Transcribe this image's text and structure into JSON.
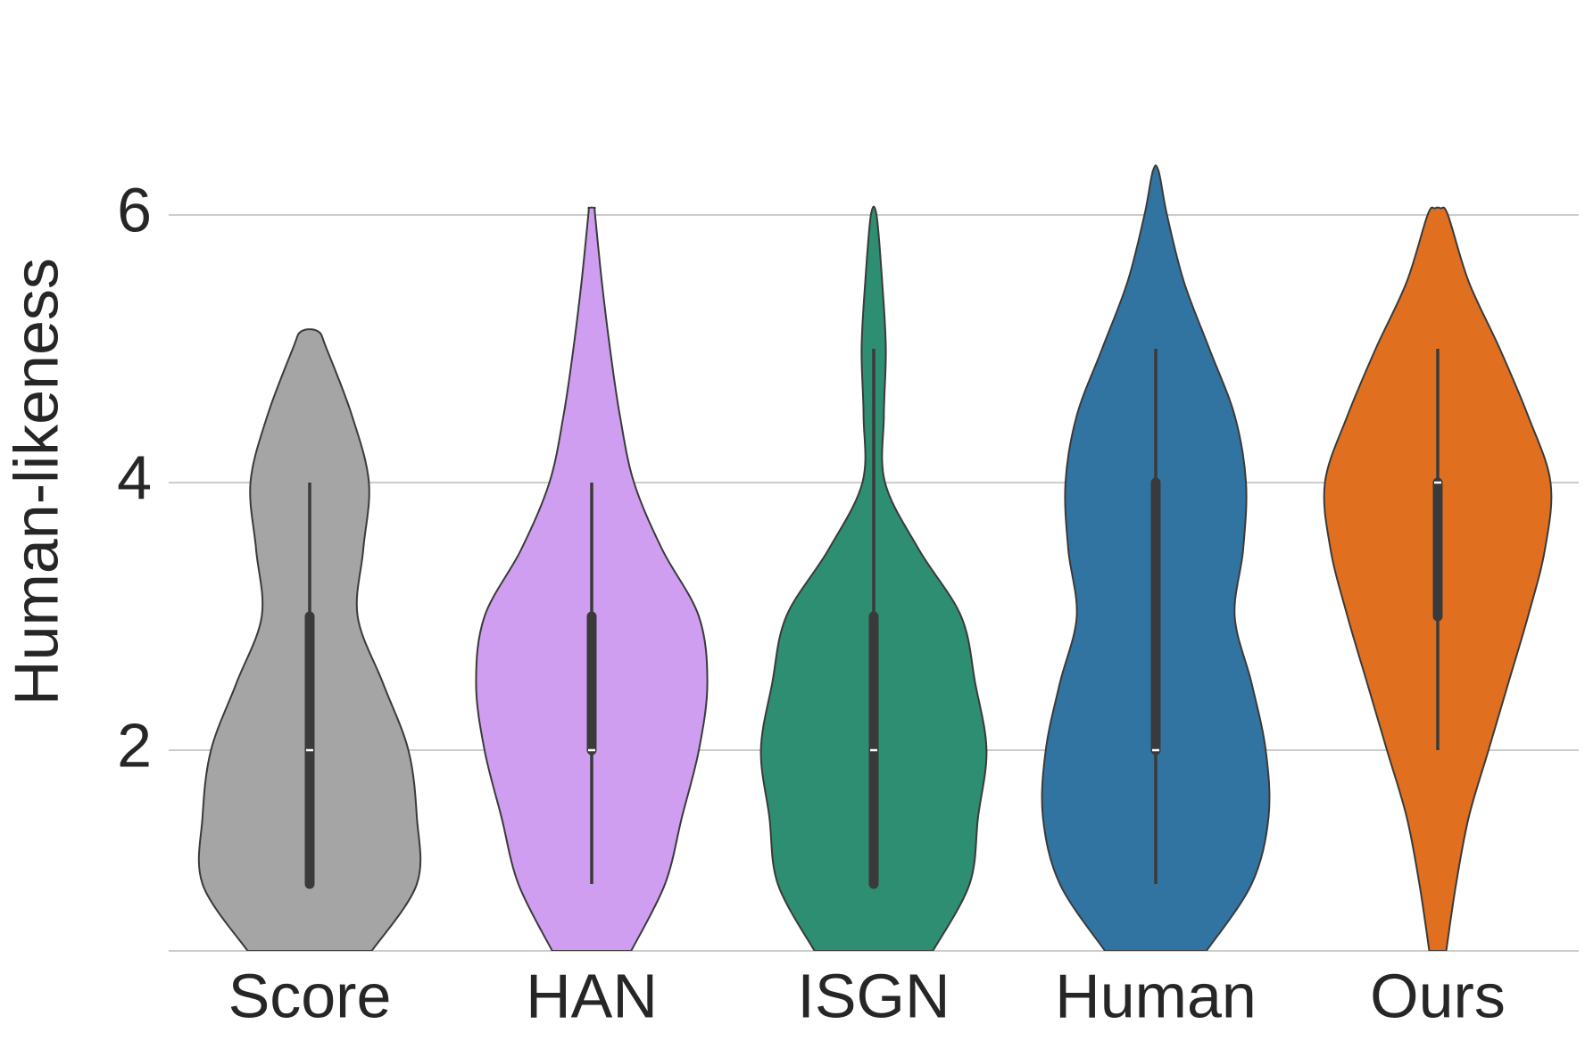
{
  "chart_data": {
    "type": "violin",
    "ylabel": "Human-likeness",
    "ylim": [
      0.5,
      7.6
    ],
    "yticks": [
      2,
      4,
      6
    ],
    "grid": true,
    "series": [
      {
        "name": "Score",
        "color": "#a5a5a5",
        "violin": {
          "y": [
            0.5,
            1.0,
            1.5,
            2.0,
            2.5,
            3.0,
            3.5,
            4.0,
            4.5,
            5.0,
            5.13
          ],
          "width": [
            0.22,
            0.38,
            0.38,
            0.35,
            0.26,
            0.17,
            0.19,
            0.21,
            0.15,
            0.06,
            0.03
          ]
        },
        "box": {
          "min": 1,
          "q1": 1,
          "median": 2,
          "q3": 3,
          "max": 4
        }
      },
      {
        "name": "HAN",
        "color": "#cf9ef0",
        "violin": {
          "y": [
            0.5,
            1.0,
            1.5,
            2.0,
            2.5,
            3.0,
            3.5,
            4.0,
            4.5,
            5.0,
            5.5,
            6.0,
            6.05
          ],
          "width": [
            0.14,
            0.26,
            0.32,
            0.38,
            0.41,
            0.38,
            0.25,
            0.15,
            0.1,
            0.065,
            0.036,
            0.012,
            0.01
          ]
        },
        "box": {
          "min": 1,
          "q1": 2,
          "median": 2,
          "q3": 3,
          "max": 4
        }
      },
      {
        "name": "ISGN",
        "color": "#2e8e72",
        "violin": {
          "y": [
            0.5,
            1.0,
            1.5,
            2.0,
            2.5,
            3.0,
            3.5,
            4.0,
            4.5,
            5.0,
            5.5,
            6.0
          ],
          "width": [
            0.21,
            0.34,
            0.37,
            0.4,
            0.36,
            0.31,
            0.16,
            0.04,
            0.036,
            0.043,
            0.03,
            0.01
          ]
        },
        "box": {
          "min": 1,
          "q1": 1,
          "median": 2,
          "q3": 3,
          "max": 5
        }
      },
      {
        "name": "Human",
        "color": "#3274a1",
        "violin": {
          "y": [
            0.5,
            1.0,
            1.5,
            2.0,
            2.5,
            3.0,
            3.5,
            4.0,
            4.5,
            5.0,
            5.5,
            6.0,
            6.33
          ],
          "width": [
            0.18,
            0.34,
            0.4,
            0.39,
            0.34,
            0.28,
            0.31,
            0.32,
            0.28,
            0.19,
            0.1,
            0.04,
            0.01
          ]
        },
        "box": {
          "min": 1,
          "q1": 2,
          "median": 2,
          "q3": 4,
          "max": 5
        }
      },
      {
        "name": "Ours",
        "color": "#e07020",
        "violin": {
          "y": [
            0.5,
            1.0,
            1.5,
            2.0,
            2.5,
            3.0,
            3.5,
            4.0,
            4.5,
            5.0,
            5.5,
            6.0,
            6.05
          ],
          "width": [
            0.03,
            0.065,
            0.11,
            0.18,
            0.25,
            0.32,
            0.38,
            0.4,
            0.32,
            0.22,
            0.11,
            0.036,
            0.01
          ]
        },
        "box": {
          "min": 2,
          "q1": 3,
          "median": 4,
          "q3": 4,
          "max": 5
        }
      }
    ]
  }
}
